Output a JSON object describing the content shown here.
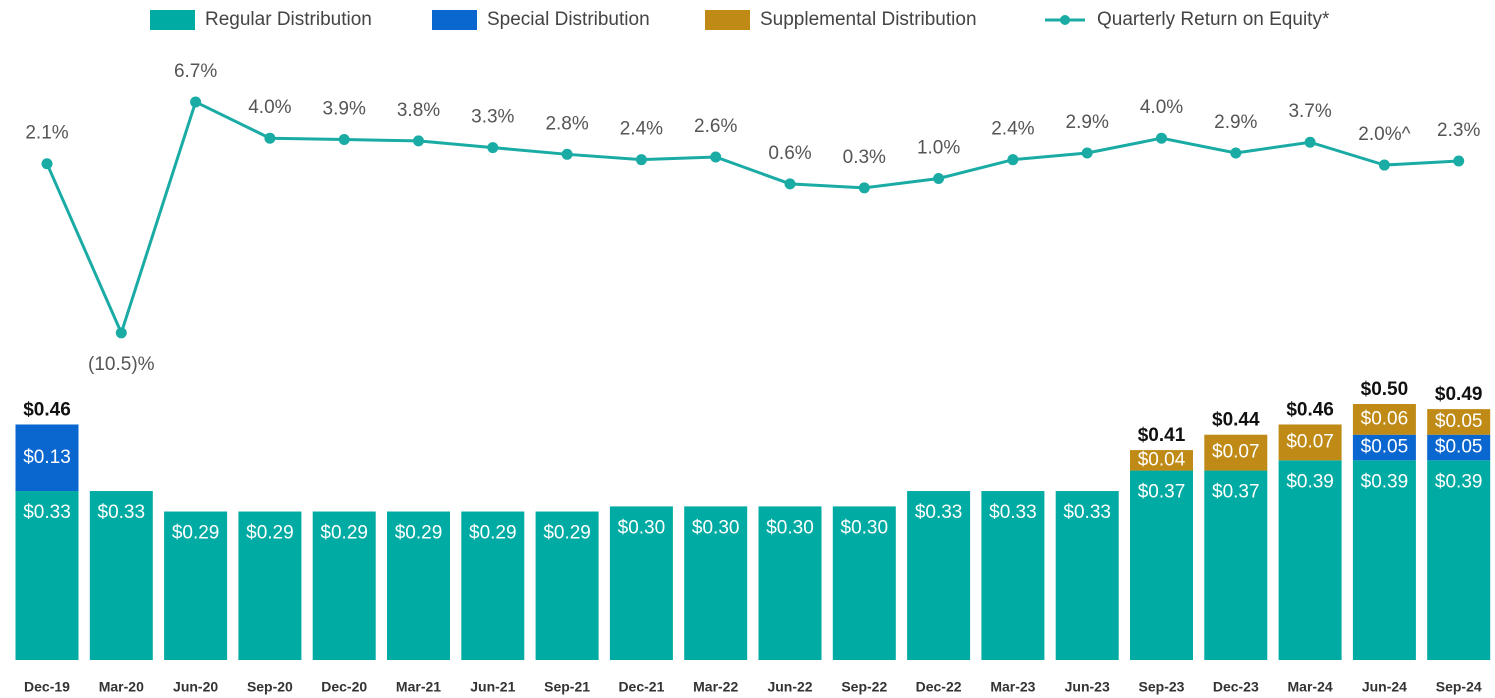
{
  "chart_data": {
    "type": "bar",
    "stacked": true,
    "categories": [
      "Dec-19",
      "Mar-20",
      "Jun-20",
      "Sep-20",
      "Dec-20",
      "Mar-21",
      "Jun-21",
      "Sep-21",
      "Dec-21",
      "Mar-22",
      "Jun-22",
      "Sep-22",
      "Dec-22",
      "Mar-23",
      "Jun-23",
      "Sep-23",
      "Dec-23",
      "Mar-24",
      "Jun-24",
      "Sep-24"
    ],
    "series": [
      {
        "name": "Regular Distribution",
        "type": "bar",
        "color": "#00aba3",
        "values": [
          0.33,
          0.33,
          0.29,
          0.29,
          0.29,
          0.29,
          0.29,
          0.29,
          0.3,
          0.3,
          0.3,
          0.3,
          0.33,
          0.33,
          0.33,
          0.37,
          0.37,
          0.39,
          0.39,
          0.39
        ],
        "value_labels": [
          "$0.33",
          "$0.33",
          "$0.29",
          "$0.29",
          "$0.29",
          "$0.29",
          "$0.29",
          "$0.29",
          "$0.30",
          "$0.30",
          "$0.30",
          "$0.30",
          "$0.33",
          "$0.33",
          "$0.33",
          "$0.37",
          "$0.37",
          "$0.39",
          "$0.39",
          "$0.39"
        ]
      },
      {
        "name": "Special Distribution",
        "type": "bar",
        "color": "#0b67d0",
        "values": [
          0.13,
          null,
          null,
          null,
          null,
          null,
          null,
          null,
          null,
          null,
          null,
          null,
          null,
          null,
          null,
          null,
          null,
          null,
          0.05,
          0.05
        ],
        "value_labels": [
          "$0.13",
          null,
          null,
          null,
          null,
          null,
          null,
          null,
          null,
          null,
          null,
          null,
          null,
          null,
          null,
          null,
          null,
          null,
          "$0.05",
          "$0.05"
        ]
      },
      {
        "name": "Supplemental Distribution",
        "type": "bar",
        "color": "#bf8a15",
        "values": [
          null,
          null,
          null,
          null,
          null,
          null,
          null,
          null,
          null,
          null,
          null,
          null,
          null,
          null,
          null,
          0.04,
          0.07,
          0.07,
          0.06,
          0.05
        ],
        "value_labels": [
          null,
          null,
          null,
          null,
          null,
          null,
          null,
          null,
          null,
          null,
          null,
          null,
          null,
          null,
          null,
          "$0.04",
          "$0.07",
          "$0.07",
          "$0.06",
          "$0.05"
        ]
      },
      {
        "name": "Quarterly Return on Equity*",
        "type": "line",
        "axis": "y2",
        "color": "#1aaba5",
        "values": [
          2.1,
          -10.5,
          6.7,
          4.0,
          3.9,
          3.8,
          3.3,
          2.8,
          2.4,
          2.6,
          0.6,
          0.3,
          1.0,
          2.4,
          2.9,
          4.0,
          2.9,
          3.7,
          2.0,
          2.3
        ],
        "value_labels": [
          "2.1%",
          "(10.5)%",
          "6.7%",
          "4.0%",
          "3.9%",
          "3.8%",
          "3.3%",
          "2.8%",
          "2.4%",
          "2.6%",
          "0.6%",
          "0.3%",
          "1.0%",
          "2.4%",
          "2.9%",
          "4.0%",
          "2.9%",
          "3.7%",
          "2.0%^",
          "2.3%"
        ]
      }
    ],
    "total_labels": [
      "$0.46",
      null,
      null,
      null,
      null,
      null,
      null,
      null,
      null,
      null,
      null,
      null,
      null,
      null,
      null,
      "$0.41",
      "$0.44",
      "$0.46",
      "$0.50",
      "$0.49"
    ],
    "ylim": [
      0,
      0.5
    ],
    "y2lim": [
      -12,
      8
    ],
    "legend": "top"
  }
}
